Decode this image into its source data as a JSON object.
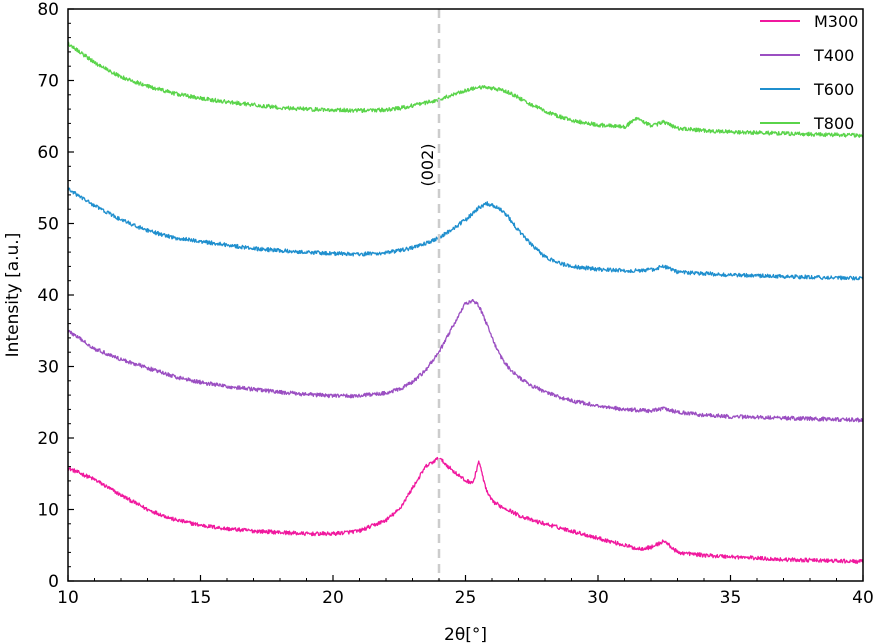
{
  "chart_data": {
    "type": "line",
    "title": "",
    "xlabel": "2θ[°]",
    "ylabel": "Intensity [a.u.]",
    "xlim": [
      10,
      40
    ],
    "ylim": [
      0,
      80
    ],
    "x_ticks": [
      10,
      15,
      20,
      25,
      30,
      35,
      40
    ],
    "y_ticks": [
      0,
      10,
      20,
      30,
      40,
      50,
      60,
      70,
      80
    ],
    "grid": false,
    "legend_position": "top-right",
    "annotations": [
      {
        "type": "vline",
        "x": 24.0,
        "label": "(002)",
        "color": "#cccccc",
        "style": "dashed"
      }
    ],
    "x": [
      10,
      11,
      12,
      13,
      14,
      15,
      16,
      17,
      18,
      19,
      20,
      21,
      22,
      22.5,
      23,
      23.5,
      24,
      24.5,
      25,
      25.3,
      25.5,
      25.8,
      26,
      26.3,
      26.6,
      27,
      27.5,
      28,
      28.5,
      29,
      30,
      31,
      31.5,
      32,
      32.5,
      33,
      34,
      35,
      36,
      37,
      38,
      39,
      40
    ],
    "series": [
      {
        "name": "M300",
        "color": "#f0189e",
        "values": [
          15.8,
          14.2,
          12.0,
          10.0,
          8.6,
          7.8,
          7.3,
          7.0,
          6.8,
          6.6,
          6.6,
          7.0,
          8.5,
          10.0,
          13.0,
          16.0,
          17.2,
          15.5,
          14.0,
          13.8,
          16.8,
          12.5,
          11.2,
          10.5,
          10.0,
          9.2,
          8.5,
          8.0,
          7.5,
          7.0,
          6.0,
          5.0,
          4.5,
          4.7,
          5.6,
          4.0,
          3.6,
          3.4,
          3.2,
          3.0,
          2.9,
          2.8,
          2.7
        ]
      },
      {
        "name": "T400",
        "color": "#9b4fc2",
        "values": [
          35.0,
          32.5,
          31.0,
          29.8,
          28.6,
          27.8,
          27.2,
          26.8,
          26.4,
          26.1,
          25.9,
          25.9,
          26.3,
          26.8,
          27.8,
          29.5,
          32.0,
          35.5,
          38.8,
          39.3,
          38.5,
          36.0,
          34.0,
          31.5,
          30.0,
          28.5,
          27.3,
          26.5,
          25.8,
          25.2,
          24.5,
          24.0,
          23.9,
          23.8,
          24.1,
          23.6,
          23.2,
          23.0,
          22.9,
          22.8,
          22.7,
          22.6,
          22.5
        ]
      },
      {
        "name": "T600",
        "color": "#1f8fce",
        "values": [
          54.8,
          52.5,
          50.5,
          49.0,
          48.0,
          47.5,
          47.0,
          46.5,
          46.2,
          46.0,
          45.8,
          45.7,
          45.9,
          46.2,
          46.6,
          47.2,
          48.0,
          49.2,
          50.5,
          51.5,
          52.2,
          52.8,
          52.6,
          52.0,
          51.0,
          49.0,
          47.0,
          45.3,
          44.5,
          44.0,
          43.6,
          43.4,
          43.4,
          43.5,
          44.0,
          43.2,
          43.0,
          42.8,
          42.7,
          42.6,
          42.5,
          42.4,
          42.3
        ]
      },
      {
        "name": "T800",
        "color": "#5ad44a",
        "values": [
          75.2,
          72.5,
          70.5,
          69.2,
          68.2,
          67.5,
          67.0,
          66.6,
          66.2,
          66.0,
          65.9,
          65.8,
          65.9,
          66.1,
          66.5,
          66.9,
          67.3,
          68.0,
          68.6,
          68.9,
          69.0,
          69.0,
          68.9,
          68.7,
          68.4,
          67.6,
          66.6,
          65.7,
          65.0,
          64.4,
          63.8,
          63.5,
          64.8,
          63.6,
          64.2,
          63.3,
          63.0,
          62.8,
          62.7,
          62.6,
          62.5,
          62.4,
          62.3
        ]
      }
    ]
  }
}
